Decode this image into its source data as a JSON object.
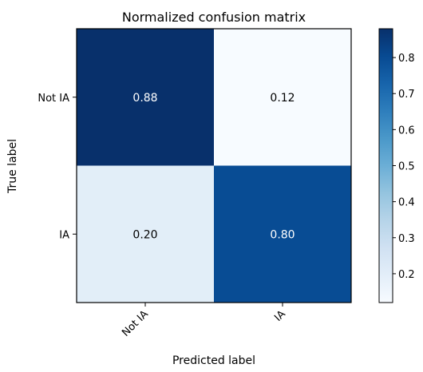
{
  "chart_data": {
    "type": "heatmap",
    "title": "Normalized confusion matrix",
    "xlabel": "Predicted label",
    "ylabel": "True label",
    "x_categories": [
      "Not IA",
      "IA"
    ],
    "y_categories": [
      "Not IA",
      "IA"
    ],
    "values": [
      [
        0.88,
        0.12
      ],
      [
        0.2,
        0.8
      ]
    ],
    "value_labels": [
      [
        "0.88",
        "0.12"
      ],
      [
        "0.20",
        "0.80"
      ]
    ],
    "colormap": "Blues",
    "color_range": [
      0.12,
      0.88
    ],
    "colorbar_ticks": [
      0.2,
      0.3,
      0.4,
      0.5,
      0.6,
      0.7,
      0.8
    ],
    "colorbar_tick_labels": [
      "0.2",
      "0.3",
      "0.4",
      "0.5",
      "0.6",
      "0.7",
      "0.8"
    ],
    "legend": "none",
    "grid": false
  }
}
